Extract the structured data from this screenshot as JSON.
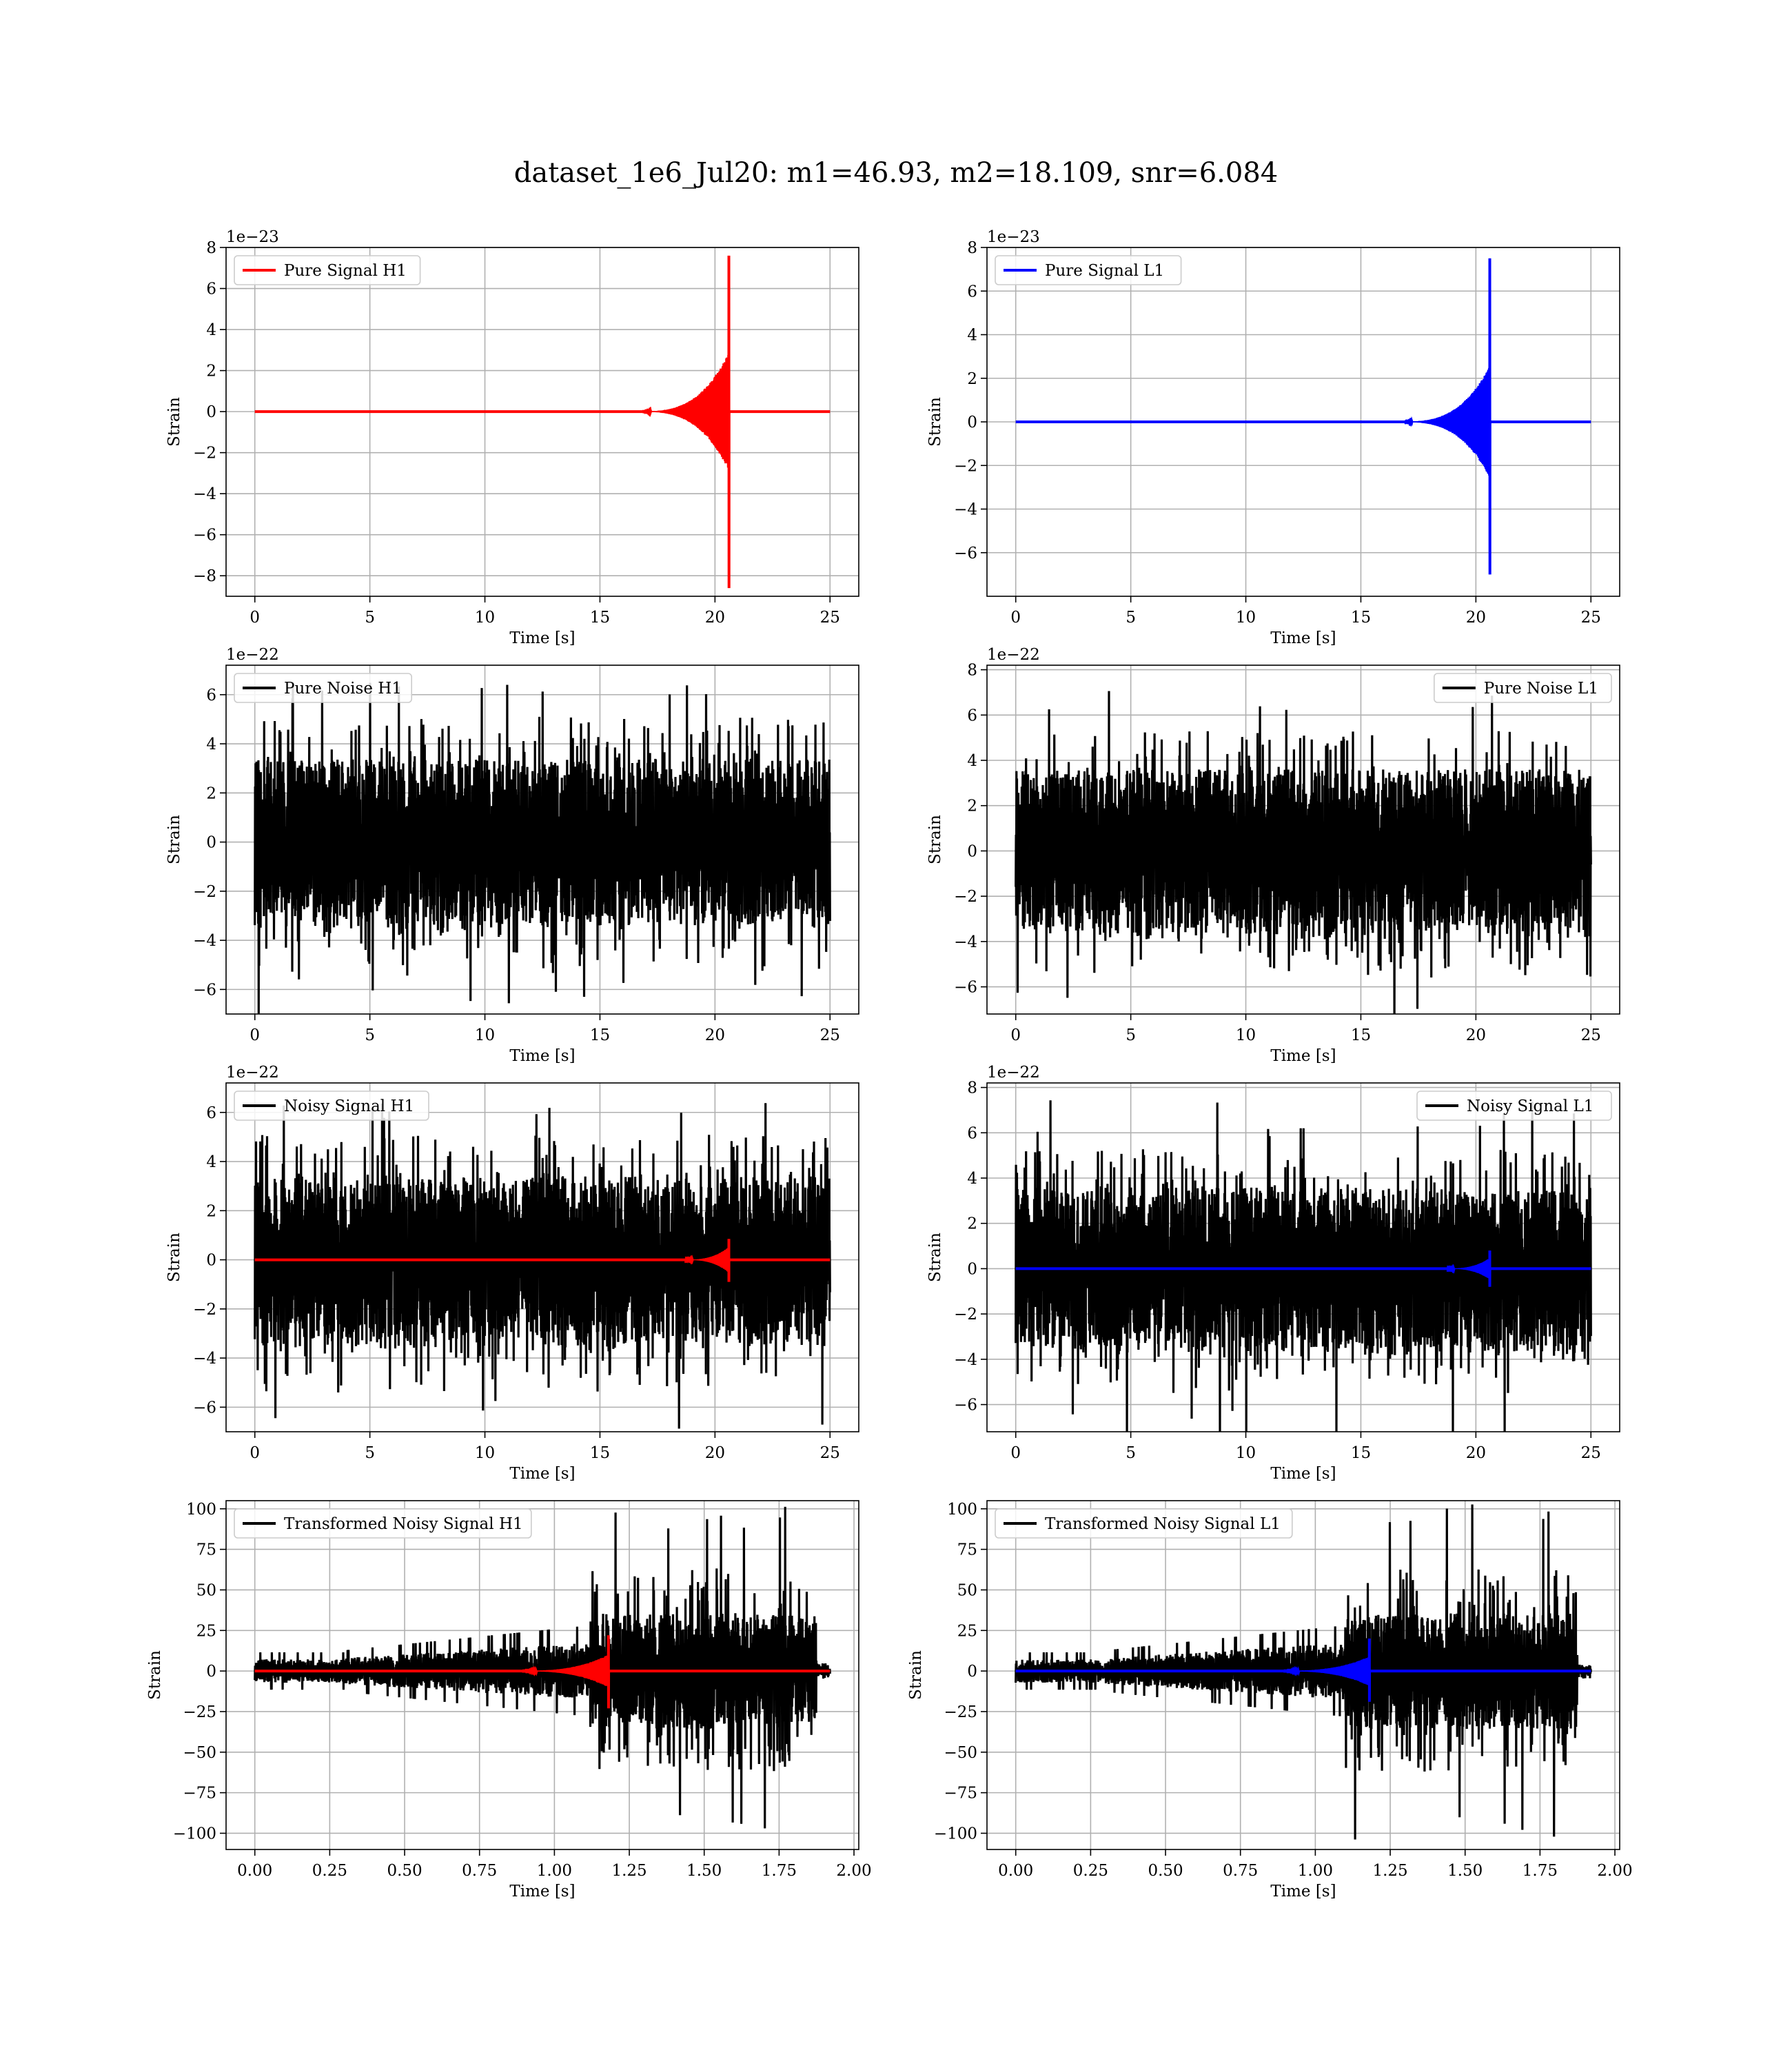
{
  "figure": {
    "title": "dataset_1e6_Jul20: m1=46.93, m2=18.109, snr=6.084"
  },
  "chart_data": [
    {
      "type": "line",
      "title": "",
      "xlabel": "Time [s]",
      "ylabel": "Strain",
      "offset_label": "1e−23",
      "xlim": [
        -1.25,
        26.25
      ],
      "ylim": [
        -9.0,
        8.0
      ],
      "xticks": [
        0,
        5,
        10,
        15,
        20,
        25
      ],
      "xtick_labels": [
        "0",
        "5",
        "10",
        "15",
        "20",
        "25"
      ],
      "yticks": [
        -8,
        -6,
        -4,
        -2,
        0,
        2,
        4,
        6,
        8
      ],
      "ytick_labels": [
        "−8",
        "−6",
        "−4",
        "−2",
        "0",
        "2",
        "4",
        "6",
        "8"
      ],
      "grid": true,
      "legend_position": "upper-left",
      "series": [
        {
          "name": "Pure Signal H1",
          "color": "#ff0000",
          "kind": "chirp",
          "x_range": [
            0,
            25
          ],
          "t_merger": 20.6,
          "peak_pos": 7.6,
          "peak_neg": -8.6,
          "envelope_pre": 2.8,
          "envelope_start": 16.5
        }
      ]
    },
    {
      "type": "line",
      "title": "",
      "xlabel": "Time [s]",
      "ylabel": "Strain",
      "offset_label": "1e−23",
      "xlim": [
        -1.25,
        26.25
      ],
      "ylim": [
        -8.0,
        8.0
      ],
      "xticks": [
        0,
        5,
        10,
        15,
        20,
        25
      ],
      "xtick_labels": [
        "0",
        "5",
        "10",
        "15",
        "20",
        "25"
      ],
      "yticks": [
        -6,
        -4,
        -2,
        0,
        2,
        4,
        6,
        8
      ],
      "ytick_labels": [
        "−6",
        "−4",
        "−2",
        "0",
        "2",
        "4",
        "6",
        "8"
      ],
      "grid": true,
      "legend_position": "upper-left",
      "series": [
        {
          "name": "Pure Signal L1",
          "color": "#0000ff",
          "kind": "chirp",
          "x_range": [
            0,
            25
          ],
          "t_merger": 20.6,
          "peak_pos": 7.5,
          "peak_neg": -7.0,
          "envelope_pre": 2.5,
          "envelope_start": 16.5
        }
      ]
    },
    {
      "type": "line",
      "title": "",
      "xlabel": "Time [s]",
      "ylabel": "Strain",
      "offset_label": "1e−22",
      "xlim": [
        -1.25,
        26.25
      ],
      "ylim": [
        -7.0,
        7.2
      ],
      "xticks": [
        0,
        5,
        10,
        15,
        20,
        25
      ],
      "xtick_labels": [
        "0",
        "5",
        "10",
        "15",
        "20",
        "25"
      ],
      "yticks": [
        -6,
        -4,
        -2,
        0,
        2,
        4,
        6
      ],
      "ytick_labels": [
        "−6",
        "−4",
        "−2",
        "0",
        "2",
        "4",
        "6"
      ],
      "grid": true,
      "legend_position": "upper-left",
      "series": [
        {
          "name": "Pure Noise H1",
          "color": "#000000",
          "kind": "noise",
          "x_range": [
            0,
            25
          ],
          "core": 3.4,
          "max": 6.6,
          "min": -6.4
        }
      ]
    },
    {
      "type": "line",
      "title": "",
      "xlabel": "Time [s]",
      "ylabel": "Strain",
      "offset_label": "1e−22",
      "xlim": [
        -1.25,
        26.25
      ],
      "ylim": [
        -7.2,
        8.2
      ],
      "xticks": [
        0,
        5,
        10,
        15,
        20,
        25
      ],
      "xtick_labels": [
        "0",
        "5",
        "10",
        "15",
        "20",
        "25"
      ],
      "yticks": [
        -6,
        -4,
        -2,
        0,
        2,
        4,
        6,
        8
      ],
      "ytick_labels": [
        "−6",
        "−4",
        "−2",
        "0",
        "2",
        "4",
        "6",
        "8"
      ],
      "grid": true,
      "legend_position": "upper-right",
      "series": [
        {
          "name": "Pure Noise L1",
          "color": "#000000",
          "kind": "noise",
          "x_range": [
            0,
            25
          ],
          "core": 3.6,
          "max": 7.5,
          "min": -6.4
        }
      ]
    },
    {
      "type": "line",
      "title": "",
      "xlabel": "Time [s]",
      "ylabel": "Strain",
      "offset_label": "1e−22",
      "xlim": [
        -1.25,
        26.25
      ],
      "ylim": [
        -7.0,
        7.2
      ],
      "xticks": [
        0,
        5,
        10,
        15,
        20,
        25
      ],
      "xtick_labels": [
        "0",
        "5",
        "10",
        "15",
        "20",
        "25"
      ],
      "yticks": [
        -6,
        -4,
        -2,
        0,
        2,
        4,
        6
      ],
      "ytick_labels": [
        "−6",
        "−4",
        "−2",
        "0",
        "2",
        "4",
        "6"
      ],
      "grid": true,
      "legend_position": "upper-left",
      "series": [
        {
          "name": "Noisy Signal H1",
          "color": "#000000",
          "kind": "noise",
          "x_range": [
            0,
            25
          ],
          "core": 3.4,
          "max": 6.6,
          "min": -6.4
        },
        {
          "name": "",
          "color": "#ff0000",
          "kind": "chirp",
          "x_range": [
            0,
            25
          ],
          "t_merger": 20.6,
          "peak_pos": 0.85,
          "peak_neg": -0.9,
          "envelope_pre": 0.5,
          "envelope_start": 18.5
        }
      ]
    },
    {
      "type": "line",
      "title": "",
      "xlabel": "Time [s]",
      "ylabel": "Strain",
      "offset_label": "1e−22",
      "xlim": [
        -1.25,
        26.25
      ],
      "ylim": [
        -7.2,
        8.2
      ],
      "xticks": [
        0,
        5,
        10,
        15,
        20,
        25
      ],
      "xtick_labels": [
        "0",
        "5",
        "10",
        "15",
        "20",
        "25"
      ],
      "yticks": [
        -6,
        -4,
        -2,
        0,
        2,
        4,
        6,
        8
      ],
      "ytick_labels": [
        "−6",
        "−4",
        "−2",
        "0",
        "2",
        "4",
        "6",
        "8"
      ],
      "grid": true,
      "legend_position": "upper-right",
      "series": [
        {
          "name": "Noisy Signal L1",
          "color": "#000000",
          "kind": "noise",
          "x_range": [
            0,
            25
          ],
          "core": 3.6,
          "max": 7.5,
          "min": -6.4
        },
        {
          "name": "",
          "color": "#0000ff",
          "kind": "chirp",
          "x_range": [
            0,
            25
          ],
          "t_merger": 20.6,
          "peak_pos": 0.8,
          "peak_neg": -0.8,
          "envelope_pre": 0.45,
          "envelope_start": 18.5
        }
      ]
    },
    {
      "type": "line",
      "title": "",
      "xlabel": "Time [s]",
      "ylabel": "Strain",
      "offset_label": "",
      "xlim": [
        -0.096,
        2.016
      ],
      "ylim": [
        -110,
        105
      ],
      "xticks": [
        0.0,
        0.25,
        0.5,
        0.75,
        1.0,
        1.25,
        1.5,
        1.75,
        2.0
      ],
      "xtick_labels": [
        "0.00",
        "0.25",
        "0.50",
        "0.75",
        "1.00",
        "1.25",
        "1.50",
        "1.75",
        "2.00"
      ],
      "yticks": [
        -100,
        -75,
        -50,
        -25,
        0,
        25,
        50,
        75,
        100
      ],
      "ytick_labels": [
        "−100",
        "−75",
        "−50",
        "−25",
        "0",
        "25",
        "50",
        "75",
        "100"
      ],
      "grid": true,
      "legend_position": "upper-left",
      "series": [
        {
          "name": "Transformed Noisy Signal H1",
          "color": "#000000",
          "kind": "transformed",
          "x_range": [
            0,
            1.92
          ],
          "early_amp": 8,
          "late_amp": 55,
          "spike_max": 97,
          "spike_min": -103,
          "t_jump": 1.12,
          "t_cut": 1.875,
          "tail_to": 1.92
        },
        {
          "name": "",
          "color": "#ff0000",
          "kind": "chirp",
          "x_range": [
            0,
            1.92
          ],
          "t_merger": 1.18,
          "peak_pos": 22,
          "peak_neg": -23,
          "envelope_pre": 10,
          "envelope_start": 0.85
        }
      ]
    },
    {
      "type": "line",
      "title": "",
      "xlabel": "Time [s]",
      "ylabel": "Strain",
      "offset_label": "",
      "xlim": [
        -0.096,
        2.016
      ],
      "ylim": [
        -110,
        105
      ],
      "xticks": [
        0.0,
        0.25,
        0.5,
        0.75,
        1.0,
        1.25,
        1.5,
        1.75,
        2.0
      ],
      "xtick_labels": [
        "0.00",
        "0.25",
        "0.50",
        "0.75",
        "1.00",
        "1.25",
        "1.50",
        "1.75",
        "2.00"
      ],
      "yticks": [
        -100,
        -75,
        -50,
        -25,
        0,
        25,
        50,
        75,
        100
      ],
      "ytick_labels": [
        "−100",
        "−75",
        "−50",
        "−25",
        "0",
        "25",
        "50",
        "75",
        "100"
      ],
      "grid": true,
      "legend_position": "upper-left",
      "series": [
        {
          "name": "Transformed Noisy Signal L1",
          "color": "#000000",
          "kind": "transformed",
          "x_range": [
            0,
            1.92
          ],
          "early_amp": 8,
          "late_amp": 55,
          "spike_max": 100,
          "spike_min": -105,
          "t_jump": 1.1,
          "t_cut": 1.875,
          "tail_to": 1.92
        },
        {
          "name": "",
          "color": "#0000ff",
          "kind": "chirp",
          "x_range": [
            0,
            1.92
          ],
          "t_merger": 1.18,
          "peak_pos": 20,
          "peak_neg": -19,
          "envelope_pre": 9,
          "envelope_start": 0.85
        }
      ]
    }
  ]
}
